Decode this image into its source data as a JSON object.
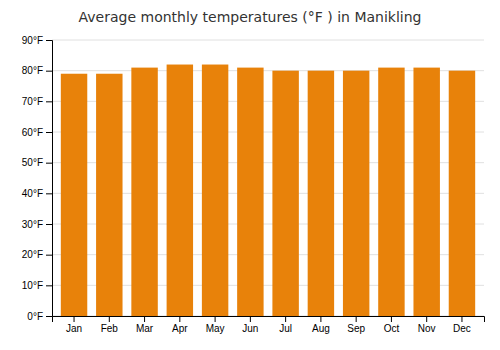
{
  "chart_data": {
    "type": "bar",
    "title": "Average monthly temperatures (°F ) in Manikling",
    "categories": [
      "Jan",
      "Feb",
      "Mar",
      "Apr",
      "May",
      "Jun",
      "Jul",
      "Aug",
      "Sep",
      "Oct",
      "Nov",
      "Dec"
    ],
    "values": [
      79,
      79,
      81,
      82,
      82,
      81,
      80,
      80,
      80,
      81,
      81,
      80
    ],
    "color": "#E8820A",
    "ylim": [
      0,
      90
    ],
    "yticks": [
      {
        "value": 0,
        "label": "0°F"
      },
      {
        "value": 10,
        "label": "10°F"
      },
      {
        "value": 20,
        "label": "20°F"
      },
      {
        "value": 30,
        "label": "30°F"
      },
      {
        "value": 40,
        "label": "40°F"
      },
      {
        "value": 50,
        "label": "50°F"
      },
      {
        "value": 60,
        "label": "60°F"
      },
      {
        "value": 70,
        "label": "70°F"
      },
      {
        "value": 80,
        "label": "80°F"
      },
      {
        "value": 90,
        "label": "90°F"
      }
    ],
    "grid": true
  }
}
